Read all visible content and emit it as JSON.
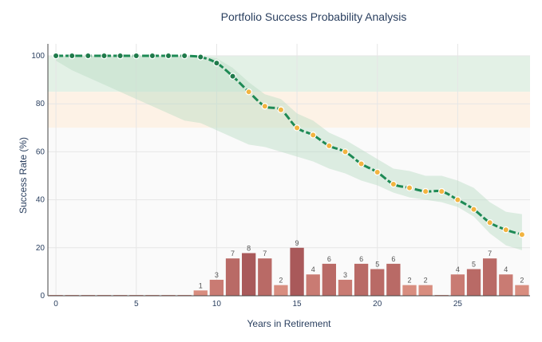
{
  "chart_data": {
    "type": "line",
    "title": "Portfolio Success Probability Analysis",
    "xlabel": "Years in Retirement",
    "ylabel": "Success Rate (%)",
    "xlim": [
      -0.5,
      29.5
    ],
    "ylim": [
      0,
      105
    ],
    "xticks": [
      0,
      5,
      10,
      15,
      20,
      25
    ],
    "yticks": [
      0,
      20,
      40,
      60,
      80,
      100
    ],
    "grid": true,
    "legend": "none",
    "zones": [
      {
        "from": 85,
        "to": 100,
        "color": "#e3f1e6"
      },
      {
        "from": 70,
        "to": 85,
        "color": "#fdf2e6"
      },
      {
        "from": 0,
        "to": 70,
        "color": "#fafafa"
      }
    ],
    "series": [
      {
        "kind": "line",
        "color": "#1e8a55",
        "marker_color_high": "#1f7a4a",
        "marker_color_low": "#f2b441",
        "x": [
          0,
          1,
          2,
          3,
          4,
          5,
          6,
          7,
          8,
          9,
          10,
          11,
          12,
          13,
          14,
          15,
          16,
          17,
          18,
          19,
          20,
          21,
          22,
          23,
          24,
          25,
          26,
          27,
          28,
          29
        ],
        "values": [
          100,
          100,
          100,
          100,
          100,
          100,
          100,
          100,
          100,
          99.5,
          97,
          91.5,
          85,
          79,
          77.5,
          70,
          67,
          62.5,
          60,
          55,
          51.5,
          46.5,
          45,
          43.5,
          43.5,
          40,
          36,
          30.5,
          27.5,
          25.5
        ]
      },
      {
        "kind": "band",
        "color": "#b9dcc4",
        "x": [
          0,
          1,
          2,
          3,
          4,
          5,
          6,
          7,
          8,
          9,
          10,
          11,
          12,
          13,
          14,
          15,
          16,
          17,
          18,
          19,
          20,
          21,
          22,
          23,
          24,
          25,
          26,
          27,
          28,
          29
        ],
        "upper": [
          100,
          100,
          100,
          100,
          100,
          100,
          100,
          100,
          100,
          100,
          99,
          95,
          89,
          84,
          82,
          76,
          73,
          68,
          65,
          61,
          57,
          53,
          52,
          50,
          50,
          48,
          45,
          39,
          35,
          34
        ],
        "lower": [
          98,
          94,
          91,
          88,
          85,
          82,
          79,
          76,
          73,
          72,
          69,
          66,
          63,
          62,
          60,
          58,
          56,
          53,
          51,
          48,
          46,
          43,
          41,
          40,
          39,
          37,
          33,
          26,
          21,
          19
        ]
      },
      {
        "kind": "bar",
        "x": [
          0,
          1,
          2,
          3,
          4,
          5,
          6,
          7,
          8,
          9,
          10,
          11,
          12,
          13,
          14,
          15,
          16,
          17,
          18,
          19,
          20,
          21,
          22,
          23,
          24,
          25,
          26,
          27,
          28,
          29
        ],
        "values": [
          0,
          0,
          0,
          0,
          0,
          0,
          0,
          0,
          0,
          1,
          3,
          7,
          8,
          7,
          2,
          9,
          4,
          6,
          3,
          6,
          5,
          6,
          2,
          2,
          0,
          4,
          5,
          7,
          4,
          2
        ],
        "labels": [
          "",
          "",
          "",
          "",
          "",
          "",
          "",
          "",
          "",
          "1",
          "3",
          "7",
          "8",
          "7",
          "2",
          "9",
          "4",
          "6",
          "3",
          "6",
          "5",
          "6",
          "2",
          "2",
          "",
          "4",
          "5",
          "7",
          "4",
          "2"
        ],
        "bar_scale_max": 9,
        "bar_scale_height": 20
      }
    ]
  }
}
